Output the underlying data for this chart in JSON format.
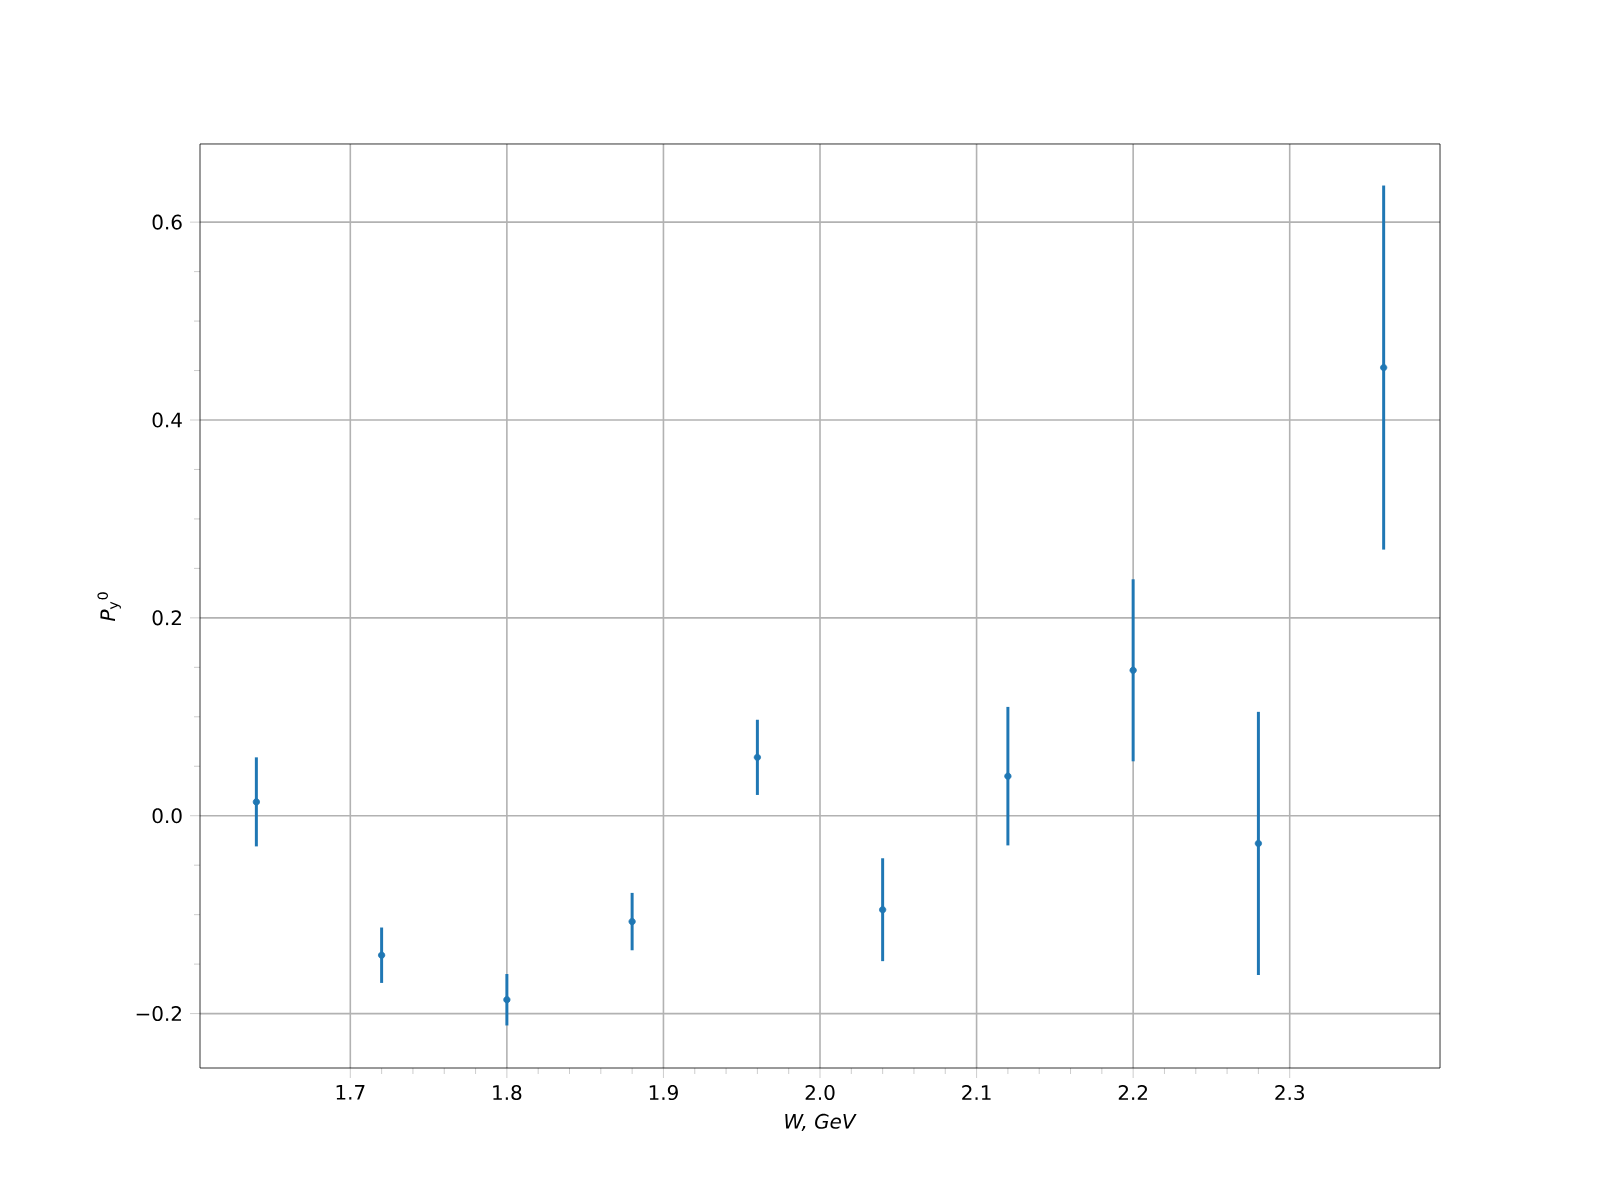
{
  "chart_data": {
    "type": "scatter",
    "xlabel": "*W, GeV*",
    "ylabel": "*P*$_{y}$$^{0}$",
    "x": [
      1.64,
      1.72,
      1.8,
      1.88,
      1.96,
      2.04,
      2.12,
      2.2,
      2.28,
      2.36
    ],
    "series": [
      {
        "color": "#1f77b4",
        "values": [
          0.014,
          -0.141,
          -0.186,
          -0.107,
          0.059,
          -0.095,
          0.04,
          0.147,
          -0.028,
          0.453
        ],
        "errors": [
          0.045,
          0.028,
          0.026,
          0.029,
          0.038,
          0.052,
          0.07,
          0.092,
          0.133,
          0.184
        ]
      }
    ],
    "xlim": [
      1.604,
      2.396
    ],
    "ylim": [
      -0.255,
      0.679
    ],
    "xticks": [
      1.7,
      1.8,
      1.9,
      {
        "value": 2.0,
        "label": "2.0"
      },
      2.1,
      2.2,
      2.3
    ],
    "yticks": [
      {
        "value": -0.2,
        "label": "−0.2"
      },
      {
        "value": 0,
        "label": "0.0"
      },
      0.2,
      0.4,
      0.6
    ],
    "grid": true,
    "marker": "circle"
  }
}
